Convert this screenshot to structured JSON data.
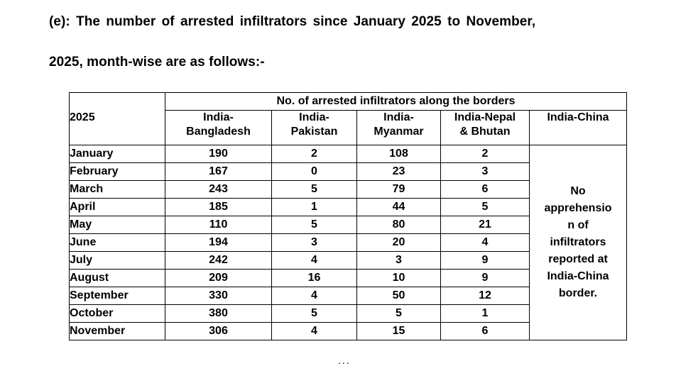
{
  "heading": {
    "line1": "(e): The number of arrested infiltrators since January 2025 to November,",
    "line2": "2025, month-wise are as follows:-"
  },
  "table": {
    "group_header": "No. of arrested infiltrators along the borders",
    "year_label": "2025",
    "columns": [
      [
        "India-",
        "Bangladesh"
      ],
      [
        "India-",
        "Pakistan"
      ],
      [
        "India-",
        "Myanmar"
      ],
      [
        "India-Nepal",
        "& Bhutan"
      ],
      [
        "India-China",
        ""
      ]
    ],
    "rows": [
      {
        "month": "January",
        "values": [
          "190",
          "2",
          "108",
          "2"
        ]
      },
      {
        "month": "February",
        "values": [
          "167",
          "0",
          "23",
          "3"
        ]
      },
      {
        "month": "March",
        "values": [
          "243",
          "5",
          "79",
          "6"
        ]
      },
      {
        "month": "April",
        "values": [
          "185",
          "1",
          "44",
          "5"
        ]
      },
      {
        "month": "May",
        "values": [
          "110",
          "5",
          "80",
          "21"
        ]
      },
      {
        "month": "June",
        "values": [
          "194",
          "3",
          "20",
          "4"
        ]
      },
      {
        "month": "July",
        "values": [
          "242",
          "4",
          "3",
          "9"
        ]
      },
      {
        "month": "August",
        "values": [
          "209",
          "16",
          "10",
          "9"
        ]
      },
      {
        "month": "September",
        "values": [
          "330",
          "4",
          "50",
          "12"
        ]
      },
      {
        "month": "October",
        "values": [
          "380",
          "5",
          "5",
          "1"
        ]
      },
      {
        "month": "November",
        "values": [
          "306",
          "4",
          "15",
          "6"
        ]
      }
    ],
    "china_note_lines": [
      "No",
      "apprehensio",
      "n of",
      "infiltrators",
      "reported at",
      "India-China",
      "border."
    ]
  },
  "footer": {
    "dots": "..."
  }
}
